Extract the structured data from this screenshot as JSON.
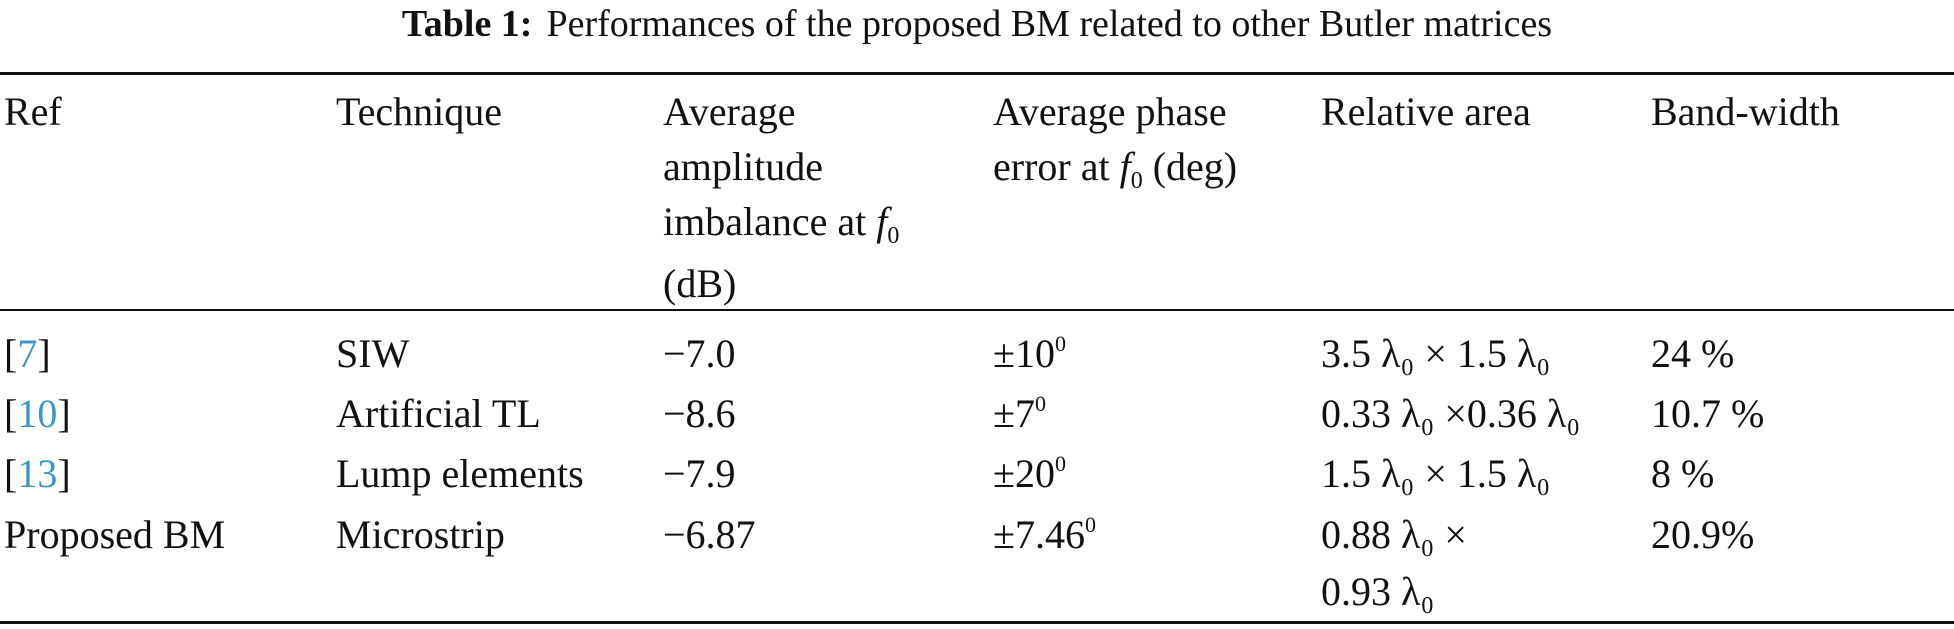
{
  "caption": {
    "label": "Table 1:",
    "text": "Performances of the proposed BM related to other Butler matrices"
  },
  "headers": {
    "ref": "Ref",
    "technique": "Technique",
    "amplitude": [
      "Average",
      "amplitude",
      "imbalance at",
      "(dB)"
    ],
    "phase": [
      "Average phase",
      "error at",
      "(deg)"
    ],
    "area": "Relative area",
    "bandwidth": "Band-width",
    "f0_symbol": "f",
    "f0_sub": "0"
  },
  "rows": [
    {
      "ref_open": "[",
      "ref_num": "7",
      "ref_close": "]",
      "technique": "SIW",
      "amplitude": "−7.0",
      "phase": "±10",
      "phase_sup": "0",
      "area": "3.5 λ₀ × 1.5 λ₀",
      "bandwidth": "24  %"
    },
    {
      "ref_open": "[",
      "ref_num": "10",
      "ref_close": "]",
      "technique": "Artificial TL",
      "amplitude": "−8.6",
      "phase": "±7",
      "phase_sup": "0",
      "area": "0.33 λ₀ ×0.36 λ₀",
      "bandwidth": "10.7 %"
    },
    {
      "ref_open": "[",
      "ref_num": "13",
      "ref_close": "]",
      "technique": "Lump elements",
      "amplitude": "−7.9",
      "phase": "±20",
      "phase_sup": "0",
      "area": "1.5 λ₀ × 1.5 λ₀",
      "bandwidth": "8 %"
    },
    {
      "ref": "Proposed BM",
      "technique": "Microstrip",
      "amplitude": "−6.87",
      "phase": "±7.46",
      "phase_sup": "0",
      "area_line1": "0.88 λ₀  ×",
      "area_line2": "0.93 λ₀",
      "bandwidth": "20.9%"
    }
  ]
}
